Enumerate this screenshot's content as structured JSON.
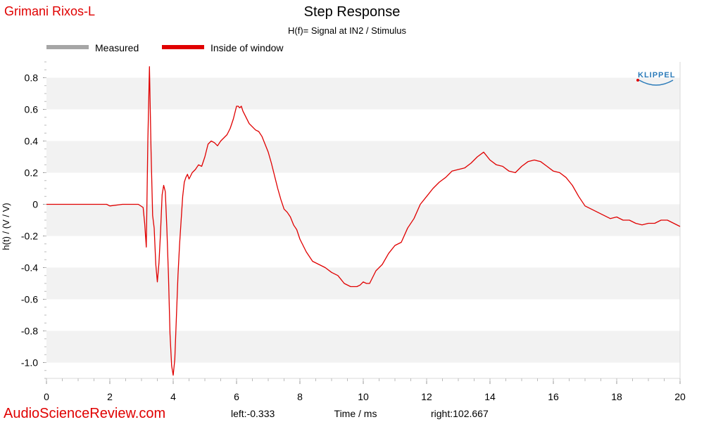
{
  "header": {
    "brand": "Grimani Rixos-L",
    "watermark": "AudioScienceReview.com",
    "logo_text": "KLIPPEL"
  },
  "chart_data": {
    "type": "line",
    "title": "Step Response",
    "subtitle": "H(f)= Signal at IN2 / Stimulus",
    "xlabel": "Time / ms",
    "ylabel": "h(t) / (V / V)",
    "xlim": [
      0,
      20
    ],
    "ylim": [
      -1.1,
      0.9
    ],
    "x_ticks": [
      "0",
      "2",
      "4",
      "6",
      "8",
      "10",
      "12",
      "14",
      "16",
      "18",
      "20"
    ],
    "y_ticks": [
      "0.8",
      "0.6",
      "0.4",
      "0.2",
      "0",
      "-0.2",
      "-0.4",
      "-0.6",
      "-0.8",
      "-1.0"
    ],
    "y_tick_values": [
      0.8,
      0.6,
      0.4,
      0.2,
      0,
      -0.2,
      -0.4,
      -0.6,
      -0.8,
      -1.0
    ],
    "footer_left": "left:-0.333",
    "footer_right": "right:102.667",
    "grid": "horizontal bands",
    "legend_position": "top-left",
    "legend": [
      {
        "name": "Measured",
        "color": "#a6a6a6"
      },
      {
        "name": "Inside of window",
        "color": "#e00000"
      }
    ],
    "series": [
      {
        "name": "Inside of window",
        "color": "#e00000",
        "x": [
          0,
          1,
          1.9,
          2.0,
          2.4,
          2.9,
          3.05,
          3.1,
          3.15,
          3.2,
          3.25,
          3.3,
          3.35,
          3.4,
          3.45,
          3.5,
          3.55,
          3.6,
          3.65,
          3.7,
          3.75,
          3.8,
          3.85,
          3.9,
          3.95,
          4.0,
          4.05,
          4.1,
          4.15,
          4.2,
          4.25,
          4.3,
          4.35,
          4.4,
          4.45,
          4.5,
          4.55,
          4.6,
          4.7,
          4.8,
          4.9,
          5.0,
          5.1,
          5.2,
          5.3,
          5.4,
          5.5,
          5.6,
          5.7,
          5.8,
          5.9,
          6.0,
          6.05,
          6.1,
          6.15,
          6.2,
          6.3,
          6.4,
          6.5,
          6.6,
          6.7,
          6.8,
          6.9,
          7.0,
          7.1,
          7.2,
          7.3,
          7.4,
          7.5,
          7.6,
          7.7,
          7.8,
          7.9,
          8.0,
          8.2,
          8.4,
          8.6,
          8.8,
          9.0,
          9.2,
          9.4,
          9.6,
          9.8,
          9.9,
          10.0,
          10.1,
          10.2,
          10.3,
          10.4,
          10.5,
          10.6,
          10.8,
          11.0,
          11.2,
          11.4,
          11.6,
          11.8,
          12.0,
          12.2,
          12.4,
          12.6,
          12.8,
          13.0,
          13.2,
          13.4,
          13.6,
          13.8,
          14.0,
          14.2,
          14.4,
          14.6,
          14.8,
          15.0,
          15.2,
          15.4,
          15.6,
          15.8,
          16.0,
          16.2,
          16.4,
          16.6,
          16.8,
          17.0,
          17.2,
          17.4,
          17.6,
          17.8,
          18.0,
          18.2,
          18.4,
          18.6,
          18.8,
          19.0,
          19.2,
          19.4,
          19.6,
          19.8,
          20.0
        ],
        "y": [
          0,
          0,
          0,
          -0.01,
          0,
          0,
          -0.02,
          -0.12,
          -0.27,
          0.4,
          0.87,
          0.35,
          -0.07,
          -0.15,
          -0.38,
          -0.49,
          -0.37,
          -0.18,
          0.06,
          0.12,
          0.08,
          -0.15,
          -0.45,
          -0.82,
          -1.02,
          -1.08,
          -0.98,
          -0.72,
          -0.45,
          -0.26,
          -0.1,
          0.05,
          0.14,
          0.17,
          0.19,
          0.16,
          0.18,
          0.2,
          0.22,
          0.25,
          0.24,
          0.3,
          0.38,
          0.4,
          0.39,
          0.37,
          0.4,
          0.42,
          0.44,
          0.48,
          0.54,
          0.62,
          0.62,
          0.61,
          0.62,
          0.59,
          0.55,
          0.51,
          0.49,
          0.47,
          0.46,
          0.43,
          0.38,
          0.33,
          0.26,
          0.18,
          0.1,
          0.03,
          -0.03,
          -0.05,
          -0.08,
          -0.13,
          -0.16,
          -0.22,
          -0.3,
          -0.36,
          -0.38,
          -0.4,
          -0.43,
          -0.45,
          -0.5,
          -0.52,
          -0.52,
          -0.51,
          -0.49,
          -0.5,
          -0.5,
          -0.46,
          -0.42,
          -0.4,
          -0.38,
          -0.31,
          -0.26,
          -0.24,
          -0.15,
          -0.09,
          0.0,
          0.05,
          0.1,
          0.14,
          0.17,
          0.21,
          0.22,
          0.23,
          0.26,
          0.3,
          0.33,
          0.28,
          0.25,
          0.24,
          0.21,
          0.2,
          0.24,
          0.27,
          0.28,
          0.27,
          0.24,
          0.21,
          0.2,
          0.17,
          0.12,
          0.05,
          -0.01,
          -0.03,
          -0.05,
          -0.07,
          -0.09,
          -0.08,
          -0.1,
          -0.1,
          -0.12,
          -0.13,
          -0.12,
          -0.12,
          -0.1,
          -0.1,
          -0.12,
          -0.14
        ]
      }
    ]
  }
}
